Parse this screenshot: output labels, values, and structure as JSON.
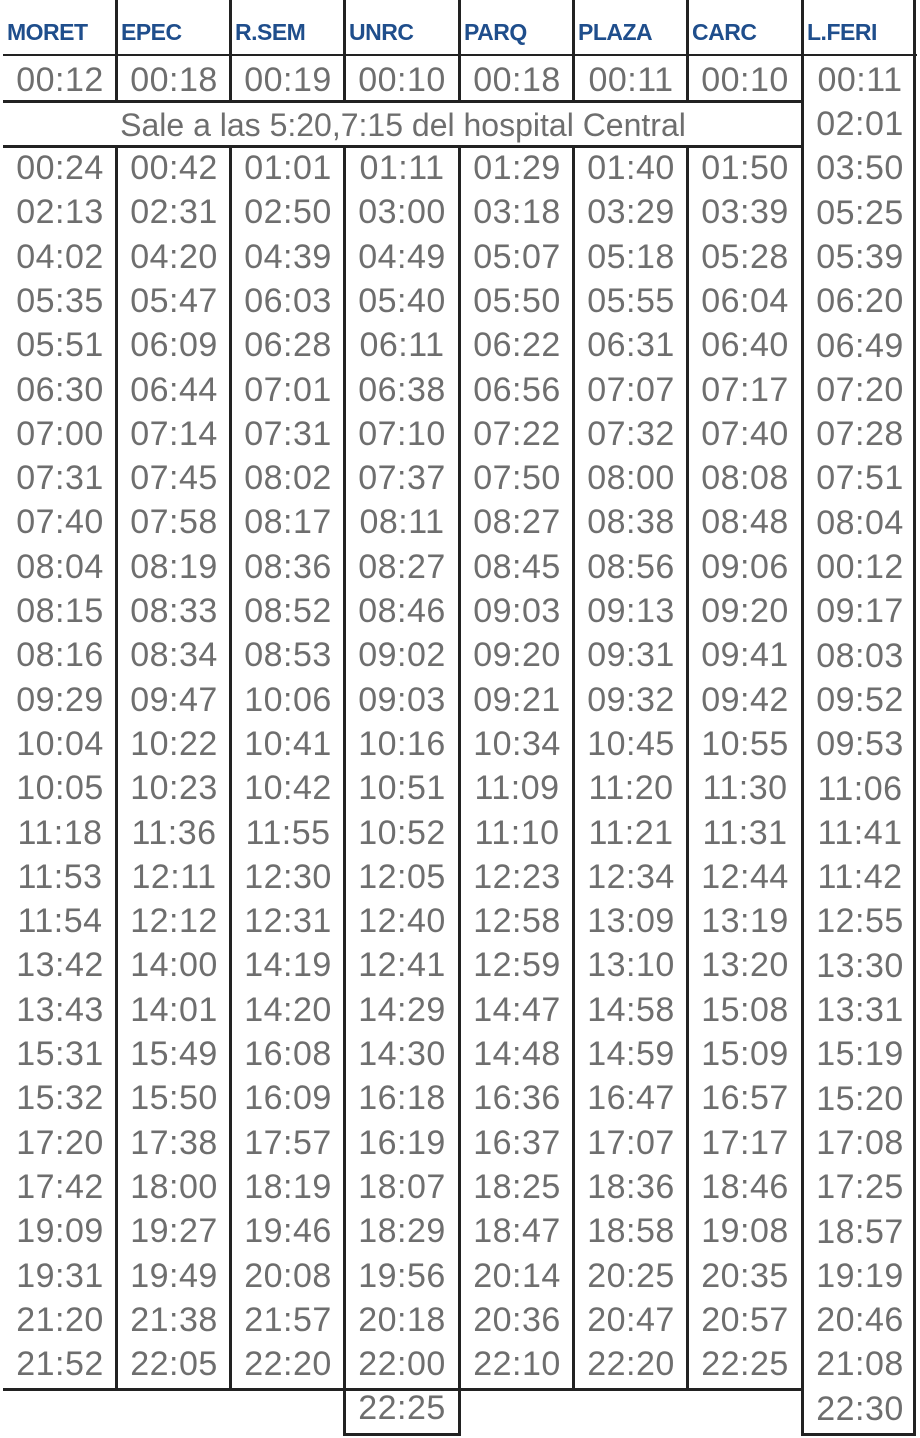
{
  "columns": [
    {
      "name": "MORET",
      "first": "00:12",
      "times": [
        "00:24",
        "02:13",
        "04:02",
        "05:35",
        "05:51",
        "06:30",
        "07:00",
        "07:31",
        "07:40",
        "08:04",
        "08:15",
        "08:16",
        "09:29",
        "10:04",
        "10:05",
        "11:18",
        "11:53",
        "11:54",
        "13:42",
        "13:43",
        "15:31",
        "15:32",
        "17:20",
        "17:42",
        "19:09",
        "19:31",
        "21:20",
        "21:52"
      ]
    },
    {
      "name": "EPEC",
      "first": "00:18",
      "times": [
        "00:42",
        "02:31",
        "04:20",
        "05:47",
        "06:09",
        "06:44",
        "07:14",
        "07:45",
        "07:58",
        "08:19",
        "08:33",
        "08:34",
        "09:47",
        "10:22",
        "10:23",
        "11:36",
        "12:11",
        "12:12",
        "14:00",
        "14:01",
        "15:49",
        "15:50",
        "17:38",
        "18:00",
        "19:27",
        "19:49",
        "21:38",
        "22:05"
      ]
    },
    {
      "name": "R.SEM",
      "first": "00:19",
      "times": [
        "01:01",
        "02:50",
        "04:39",
        "06:03",
        "06:28",
        "07:01",
        "07:31",
        "08:02",
        "08:17",
        "08:36",
        "08:52",
        "08:53",
        "10:06",
        "10:41",
        "10:42",
        "11:55",
        "12:30",
        "12:31",
        "14:19",
        "14:20",
        "16:08",
        "16:09",
        "17:57",
        "18:19",
        "19:46",
        "20:08",
        "21:57",
        "22:20"
      ]
    },
    {
      "name": "UNRC",
      "first": "00:10",
      "times": [
        "01:11",
        "03:00",
        "04:49",
        "05:40",
        "06:11",
        "06:38",
        "07:10",
        "07:37",
        "08:11",
        "08:27",
        "08:46",
        "09:02",
        "09:03",
        "10:16",
        "10:51",
        "10:52",
        "12:05",
        "12:40",
        "12:41",
        "14:29",
        "14:30",
        "16:18",
        "16:19",
        "18:07",
        "18:29",
        "19:56",
        "20:18",
        "22:00",
        "22:25"
      ]
    },
    {
      "name": "PARQ",
      "first": "00:18",
      "times": [
        "01:29",
        "03:18",
        "05:07",
        "05:50",
        "06:22",
        "06:56",
        "07:22",
        "07:50",
        "08:27",
        "08:45",
        "09:03",
        "09:20",
        "09:21",
        "10:34",
        "11:09",
        "11:10",
        "12:23",
        "12:58",
        "12:59",
        "14:47",
        "14:48",
        "16:36",
        "16:37",
        "18:25",
        "18:47",
        "20:14",
        "20:36",
        "22:10"
      ]
    },
    {
      "name": "PLAZA",
      "first": "00:11",
      "times": [
        "01:40",
        "03:29",
        "05:18",
        "05:55",
        "06:31",
        "07:07",
        "07:32",
        "08:00",
        "08:38",
        "08:56",
        "09:13",
        "09:31",
        "09:32",
        "10:45",
        "11:20",
        "11:21",
        "12:34",
        "13:09",
        "13:10",
        "14:58",
        "14:59",
        "16:47",
        "17:07",
        "18:36",
        "18:58",
        "20:25",
        "20:47",
        "22:20"
      ]
    },
    {
      "name": "CARC",
      "first": "00:10",
      "times": [
        "01:50",
        "03:39",
        "05:28",
        "06:04",
        "06:40",
        "07:17",
        "07:40",
        "08:08",
        "08:48",
        "09:06",
        "09:20",
        "09:41",
        "09:42",
        "10:55",
        "11:30",
        "11:31",
        "12:44",
        "13:19",
        "13:20",
        "15:08",
        "15:09",
        "16:57",
        "17:17",
        "18:46",
        "19:08",
        "20:35",
        "20:57",
        "22:25"
      ]
    },
    {
      "name": "L.FERI",
      "first": "00:11",
      "times": [
        "02:01",
        "03:50",
        "05:25",
        "05:39",
        "06:20",
        "06:49",
        "07:20",
        "07:28",
        "07:51",
        "08:04",
        "00:12",
        "09:17",
        "08:03",
        "09:52",
        "09:53",
        "11:06",
        "11:41",
        "11:42",
        "12:55",
        "13:30",
        "13:31",
        "15:19",
        "15:20",
        "17:08",
        "17:25",
        "18:57",
        "19:19",
        "20:46",
        "21:08",
        "22:30"
      ]
    }
  ],
  "note": "Sale a las 5:20,7:15 del hospital Central"
}
